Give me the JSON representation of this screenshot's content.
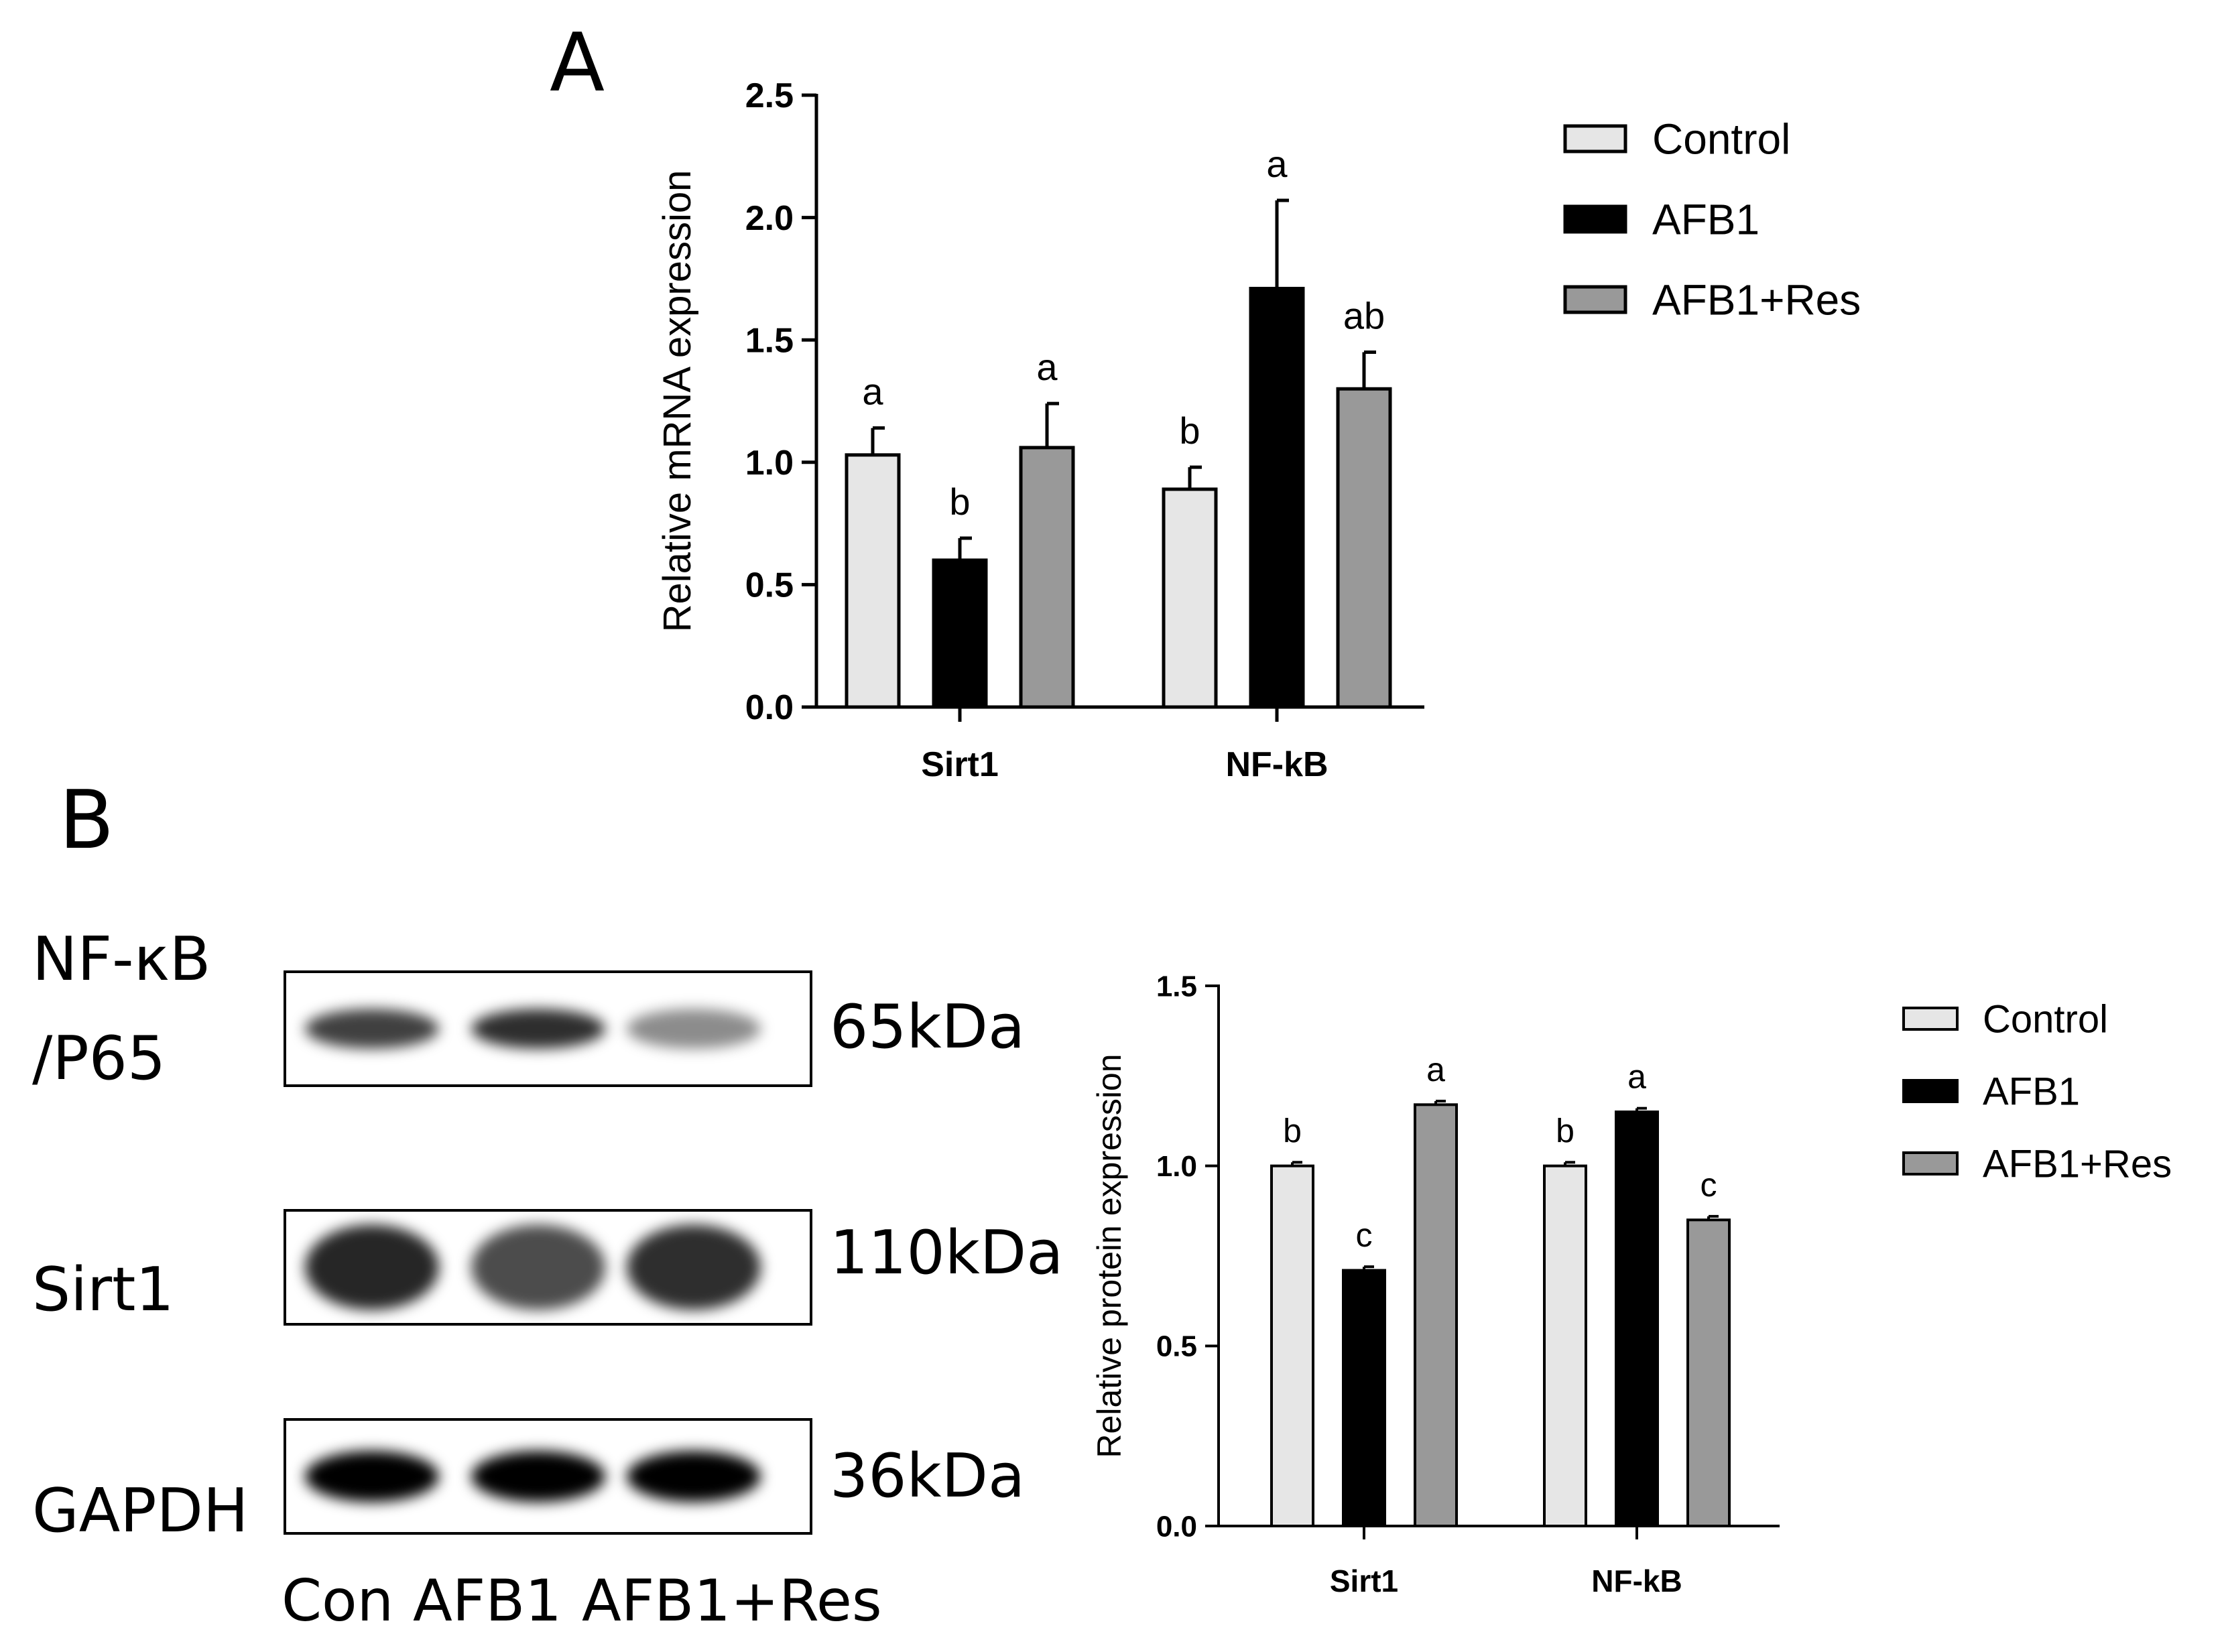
{
  "panels": {
    "a": {
      "letter": "A"
    },
    "b": {
      "letter": "B"
    }
  },
  "blot": {
    "rows": [
      {
        "label_lines": [
          "NF-κB",
          "/P65"
        ],
        "kda": "65kDa",
        "intensities": [
          0.75,
          0.82,
          0.45
        ],
        "band_height": 0.35
      },
      {
        "label_lines": [
          "Sirt1"
        ],
        "kda": "110kDa",
        "intensities": [
          0.85,
          0.7,
          0.82
        ],
        "band_height": 0.75
      },
      {
        "label_lines": [
          "GAPDH"
        ],
        "kda": "36kDa",
        "intensities": [
          1.0,
          1.0,
          1.0
        ],
        "band_height": 0.45
      }
    ],
    "lanes": [
      "Con",
      "AFB1",
      "AFB1+Res"
    ]
  },
  "colors": {
    "control": "#e6e6e6",
    "afb1": "#000000",
    "afb1_res": "#999999"
  },
  "chart_data": [
    {
      "type": "bar",
      "title": "",
      "xlabel": "",
      "ylabel": "Relative mRNA expression",
      "ylim": [
        0,
        2.5
      ],
      "ytick_values": [
        0,
        0.5,
        1.0,
        1.5,
        2.0,
        2.5
      ],
      "ytick_labels": [
        "0.0",
        "0.5",
        "1.0",
        "1.5",
        "2.0",
        "2.5"
      ],
      "categories": [
        "Sirt1",
        "NF-kB"
      ],
      "series": [
        {
          "name": "Control",
          "color": "#e6e6e6",
          "values": [
            1.03,
            0.89
          ],
          "errors": [
            0.11,
            0.09
          ],
          "letters": [
            "a",
            "b"
          ]
        },
        {
          "name": "AFB1",
          "color": "#000000",
          "values": [
            0.6,
            1.71
          ],
          "errors": [
            0.09,
            0.36
          ],
          "letters": [
            "b",
            "a"
          ]
        },
        {
          "name": "AFB1+Res",
          "color": "#999999",
          "values": [
            1.06,
            1.3
          ],
          "errors": [
            0.18,
            0.15
          ],
          "letters": [
            "a",
            "ab"
          ]
        }
      ],
      "grid": false,
      "legend_position": "top-right"
    },
    {
      "type": "bar",
      "title": "",
      "xlabel": "",
      "ylabel": "Relative protein expression",
      "ylim": [
        0,
        1.5
      ],
      "ytick_values": [
        0,
        0.5,
        1.0,
        1.5
      ],
      "ytick_labels": [
        "0.0",
        "0.5",
        "1.0",
        "1.5"
      ],
      "categories": [
        "Sirt1",
        "NF-kB"
      ],
      "series": [
        {
          "name": "Control",
          "color": "#e6e6e6",
          "values": [
            1.0,
            1.0
          ],
          "errors": [
            0.01,
            0.01
          ],
          "letters": [
            "b",
            "b"
          ]
        },
        {
          "name": "AFB1",
          "color": "#000000",
          "values": [
            0.71,
            1.15
          ],
          "errors": [
            0.01,
            0.01
          ],
          "letters": [
            "c",
            "a"
          ]
        },
        {
          "name": "AFB1+Res",
          "color": "#999999",
          "values": [
            1.17,
            0.85
          ],
          "errors": [
            0.01,
            0.01
          ],
          "letters": [
            "a",
            "c"
          ]
        }
      ],
      "grid": false,
      "legend_position": "right"
    }
  ]
}
